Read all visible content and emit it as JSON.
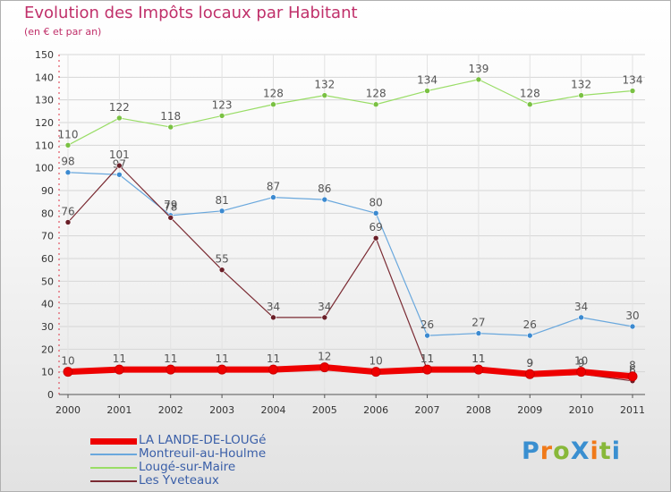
{
  "title": "Evolution des Impôts locaux par Habitant",
  "subtitle": "(en € et par an)",
  "logo": {
    "text": "ProXiti",
    "letters": [
      "P",
      "r",
      "o",
      "X",
      "i",
      "t",
      "i"
    ],
    "colors": [
      "#3a8fd0",
      "#f07a1a",
      "#88b83a",
      "#3a8fd0",
      "#f07a1a",
      "#88b83a",
      "#3a8fd0"
    ]
  },
  "chart_data": {
    "type": "line",
    "title": "Evolution des Impôts locaux par Habitant",
    "ylabel": "(en € et par an)",
    "xlabel": "",
    "categories": [
      "2000",
      "2001",
      "2002",
      "2003",
      "2004",
      "2005",
      "2006",
      "2007",
      "2008",
      "2009",
      "2010",
      "2011"
    ],
    "ylim": [
      0,
      150
    ],
    "yticks": [
      0,
      10,
      20,
      30,
      40,
      50,
      60,
      70,
      80,
      90,
      100,
      110,
      120,
      130,
      140,
      150
    ],
    "grid": true,
    "legend_position": "bottom-left",
    "series": [
      {
        "name": "Lougé-sur-Maire",
        "color": "#99dd66",
        "marker": "#7ac143",
        "width": 1.2,
        "values": [
          110,
          122,
          118,
          123,
          128,
          132,
          128,
          134,
          139,
          128,
          132,
          134
        ],
        "labels": [
          "110",
          "122",
          "118",
          "123",
          "128",
          "132",
          "128",
          "134",
          "139",
          "128",
          "132",
          "134"
        ]
      },
      {
        "name": "Montreuil-au-Houlme",
        "color": "#6aa8dd",
        "marker": "#3c8ad0",
        "width": 1.2,
        "values": [
          98,
          97,
          79,
          81,
          87,
          86,
          80,
          26,
          27,
          26,
          34,
          30
        ],
        "labels": [
          "98",
          "97",
          "79",
          "81",
          "87",
          "86",
          "80",
          "26",
          "27",
          "26",
          "34",
          "30"
        ]
      },
      {
        "name": "Les Yveteaux",
        "color": "#7a2a32",
        "marker": "#6a1f28",
        "width": 1.2,
        "values": [
          76,
          101,
          78,
          55,
          34,
          34,
          69,
          11,
          11,
          9,
          9,
          6
        ],
        "labels": [
          "76",
          "101",
          "78",
          "55",
          "34",
          "34",
          "69",
          "11",
          "11",
          "9",
          "9",
          "6"
        ]
      },
      {
        "name": "LA LANDE-DE-LOUGé",
        "color": "#ee0000",
        "marker": "#ee0000",
        "width": 7,
        "values": [
          10,
          11,
          11,
          11,
          11,
          12,
          10,
          11,
          11,
          9,
          10,
          8
        ],
        "labels": [
          "10",
          "11",
          "11",
          "11",
          "11",
          "12",
          "10",
          "11",
          "11",
          "9",
          "10",
          "8"
        ]
      }
    ],
    "legend_order": [
      "LA LANDE-DE-LOUGé",
      "Montreuil-au-Houlme",
      "Lougé-sur-Maire",
      "Les Yveteaux"
    ]
  }
}
